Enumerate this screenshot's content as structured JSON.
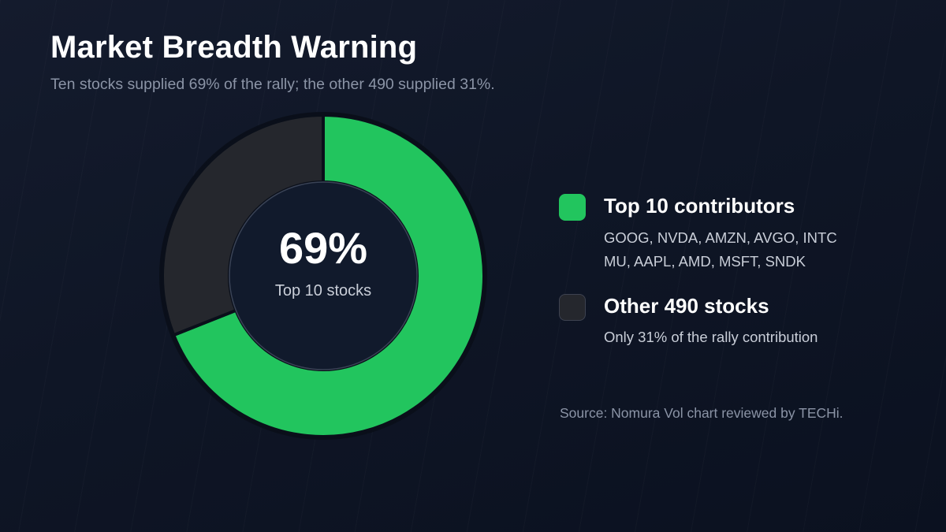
{
  "header": {
    "title": "Market Breadth Warning",
    "subtitle": "Ten stocks supplied 69% of the rally; the other 490 supplied 31%."
  },
  "center": {
    "value": "69%",
    "label": "Top 10 stocks"
  },
  "legend": [
    {
      "name": "Top 10 contributors",
      "lines": [
        "GOOG, NVDA, AMZN, AVGO, INTC",
        "MU, AAPL, AMD, MSFT, SNDK"
      ],
      "color": "#22c55e"
    },
    {
      "name": "Other 490 stocks",
      "lines": [
        "Only 31% of the rally contribution"
      ],
      "color": "#25272d"
    }
  ],
  "source": "Source: Nomura Vol chart reviewed by TECHi.",
  "chart_data": {
    "type": "pie",
    "donut": true,
    "slices": [
      {
        "label": "Top 10 contributors",
        "value": 69,
        "color": "#22c55e"
      },
      {
        "label": "Other 490 stocks",
        "value": 31,
        "color": "#25272d"
      }
    ]
  }
}
